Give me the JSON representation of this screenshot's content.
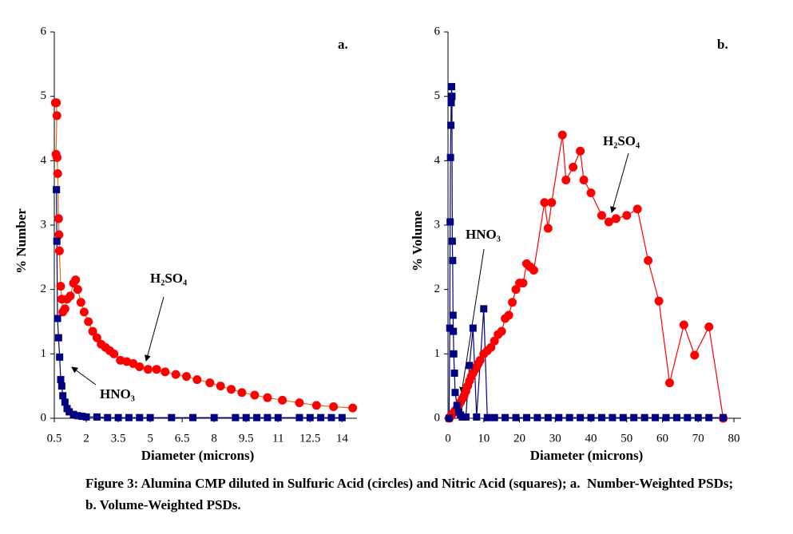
{
  "chart_data": [
    {
      "type": "scatter",
      "annotation": "a.",
      "ylabel": "% Number",
      "xlabel": "Diameter (microns)",
      "xlim": [
        0.5,
        14.7
      ],
      "xticks": [
        0.5,
        2,
        3.5,
        5,
        6.5,
        8,
        9.5,
        11,
        12.5,
        14
      ],
      "ylim": [
        0,
        6
      ],
      "yticks": [
        0,
        1,
        2,
        3,
        4,
        5,
        6
      ],
      "series": [
        {
          "name": "H₂SO₄",
          "color": "#ff0000",
          "line_color": "#e86a1a",
          "marker": "circle",
          "x": [
            0.55,
            0.6,
            0.62,
            0.58,
            0.63,
            0.66,
            0.7,
            0.72,
            0.74,
            0.8,
            0.85,
            0.9,
            1.0,
            1.1,
            1.25,
            1.4,
            1.5,
            1.6,
            1.75,
            1.9,
            2.1,
            2.3,
            2.5,
            2.7,
            2.9,
            3.1,
            3.3,
            3.6,
            3.9,
            4.2,
            4.5,
            4.9,
            5.3,
            5.7,
            6.2,
            6.7,
            7.2,
            7.8,
            8.3,
            8.8,
            9.3,
            9.9,
            10.5,
            11.2,
            12,
            12.8,
            13.6,
            14.5
          ],
          "values": [
            4.9,
            4.9,
            4.7,
            4.1,
            4.05,
            3.8,
            3.1,
            2.85,
            2.6,
            2.05,
            1.85,
            1.65,
            1.7,
            1.85,
            1.9,
            2.1,
            2.15,
            2.0,
            1.8,
            1.65,
            1.5,
            1.35,
            1.25,
            1.15,
            1.1,
            1.05,
            1.0,
            0.9,
            0.88,
            0.85,
            0.8,
            0.76,
            0.76,
            0.72,
            0.68,
            0.65,
            0.6,
            0.55,
            0.5,
            0.45,
            0.4,
            0.36,
            0.32,
            0.28,
            0.24,
            0.2,
            0.18,
            0.16
          ]
        },
        {
          "name": "HNO₃",
          "color": "#000080",
          "line_color": "#000080",
          "marker": "square",
          "x": [
            0.6,
            0.62,
            0.65,
            0.7,
            0.75,
            0.8,
            0.85,
            0.9,
            1.0,
            1.1,
            1.2,
            1.4,
            1.6,
            1.8,
            2.0,
            2.5,
            3,
            3.5,
            4,
            4.5,
            5,
            6,
            7,
            8,
            9,
            9.5,
            10,
            10.5,
            11,
            12,
            12.5,
            13,
            13.5,
            14
          ],
          "values": [
            3.55,
            2.75,
            1.55,
            1.25,
            0.95,
            0.6,
            0.5,
            0.35,
            0.25,
            0.15,
            0.1,
            0.06,
            0.04,
            0.03,
            0.02,
            0.02,
            0.01,
            0.01,
            0.01,
            0.01,
            0.01,
            0.01,
            0.01,
            0.01,
            0.01,
            0.01,
            0.01,
            0.01,
            0.01,
            0.01,
            0.01,
            0.01,
            0.01,
            0.01
          ]
        }
      ]
    },
    {
      "type": "scatter",
      "annotation": "b.",
      "ylabel": "% Volume",
      "xlabel": "Diameter (microns)",
      "xlim": [
        0,
        82
      ],
      "xticks": [
        0,
        10,
        20,
        30,
        40,
        50,
        60,
        70,
        80
      ],
      "ylim": [
        0,
        6
      ],
      "yticks": [
        0,
        1,
        2,
        3,
        4,
        5,
        6
      ],
      "series": [
        {
          "name": "H₂SO₄",
          "color": "#ff0000",
          "line_color": "#ff0000",
          "marker": "circle",
          "x": [
            0.3,
            0.6,
            1,
            1.5,
            2,
            2.5,
            3,
            3.5,
            4,
            4.5,
            5,
            5.5,
            6,
            6.5,
            7,
            7.5,
            8,
            8.5,
            9,
            10,
            11,
            12,
            13,
            14,
            15,
            16,
            17,
            18,
            19,
            20,
            21,
            22,
            23,
            24,
            27,
            28,
            29,
            32,
            33,
            35,
            37,
            38,
            40,
            43,
            45,
            47,
            50,
            53,
            56,
            59,
            62,
            66,
            69,
            73,
            77
          ],
          "values": [
            0,
            0.02,
            0.05,
            0.08,
            0.12,
            0.15,
            0.2,
            0.25,
            0.3,
            0.35,
            0.42,
            0.5,
            0.58,
            0.65,
            0.7,
            0.75,
            0.8,
            0.85,
            0.9,
            1.0,
            1.05,
            1.1,
            1.2,
            1.3,
            1.35,
            1.55,
            1.6,
            1.8,
            2.0,
            2.1,
            2.1,
            2.4,
            2.35,
            2.3,
            3.35,
            2.95,
            3.35,
            4.4,
            3.7,
            3.9,
            4.15,
            3.7,
            3.5,
            3.15,
            3.05,
            3.1,
            3.15,
            3.25,
            2.45,
            1.82,
            0.55,
            1.45,
            0.98,
            1.42,
            0
          ]
        },
        {
          "name": "HNO₃",
          "color": "#000080",
          "line_color": "#000080",
          "marker": "square",
          "x": [
            0.3,
            0.5,
            0.6,
            0.7,
            0.8,
            0.9,
            1.0,
            1.1,
            1.2,
            1.3,
            1.4,
            1.5,
            1.6,
            1.8,
            2,
            2.5,
            3,
            3.5,
            4,
            5,
            6,
            7,
            8,
            10,
            11,
            13,
            16,
            19,
            22,
            25,
            28,
            31,
            34,
            37,
            40,
            43,
            46,
            49,
            52,
            55,
            58,
            61,
            64,
            67,
            70,
            73,
            77
          ],
          "values": [
            0,
            1.4,
            3.05,
            4.05,
            4.55,
            4.9,
            5.15,
            5.0,
            2.75,
            2.45,
            1.6,
            1.35,
            1.0,
            0.7,
            0.4,
            0.2,
            0.1,
            0.05,
            0.02,
            0.02,
            0.82,
            1.4,
            0.02,
            1.7,
            0.01,
            0.01,
            0.01,
            0.01,
            0.01,
            0.01,
            0.01,
            0.01,
            0.01,
            0.01,
            0.01,
            0.01,
            0.01,
            0.01,
            0.01,
            0.01,
            0.01,
            0.01,
            0.01,
            0.01,
            0.01,
            0.01,
            0.01
          ]
        }
      ]
    }
  ],
  "caption": "Figure 3: Alumina CMP diluted in Sulfuric Acid (circles) and Nitric Acid (squares); a.  Number-Weighted PSDs;  b. Volume-Weighted PSDs."
}
